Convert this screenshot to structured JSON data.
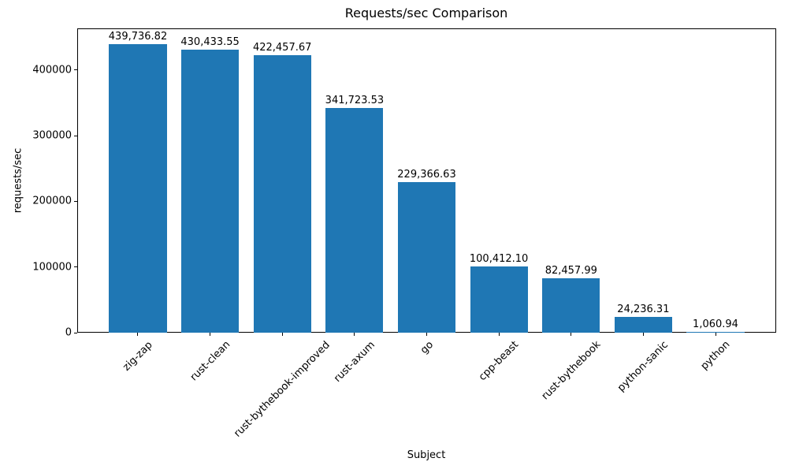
{
  "chart_data": {
    "type": "bar",
    "title": "Requests/sec Comparison",
    "xlabel": "Subject",
    "ylabel": "requests/sec",
    "categories": [
      "zig-zap",
      "rust-clean",
      "rust-bythebook-improved",
      "rust-axum",
      "go",
      "cpp-beast",
      "rust-bythebook",
      "python-sanic",
      "python"
    ],
    "values": [
      439736.82,
      430433.55,
      422457.67,
      341723.53,
      229366.63,
      100412.1,
      82457.99,
      24236.31,
      1060.94
    ],
    "value_labels": [
      "439,736.82",
      "430,433.55",
      "422,457.67",
      "341,723.53",
      "229,366.63",
      "100,412.10",
      "82,457.99",
      "24,236.31",
      "1,060.94"
    ],
    "yticks": [
      0,
      100000,
      200000,
      300000,
      400000
    ],
    "ytick_labels": [
      "0",
      "100000",
      "200000",
      "300000",
      "400000"
    ],
    "ylim": [
      0,
      463200
    ],
    "bar_color": "#1f77b4",
    "text_color": "#000000",
    "background_color": "#ffffff",
    "grid": false,
    "legend_position": "none",
    "x_tick_rotation_deg": 45,
    "bar_relative_width": 0.8
  }
}
